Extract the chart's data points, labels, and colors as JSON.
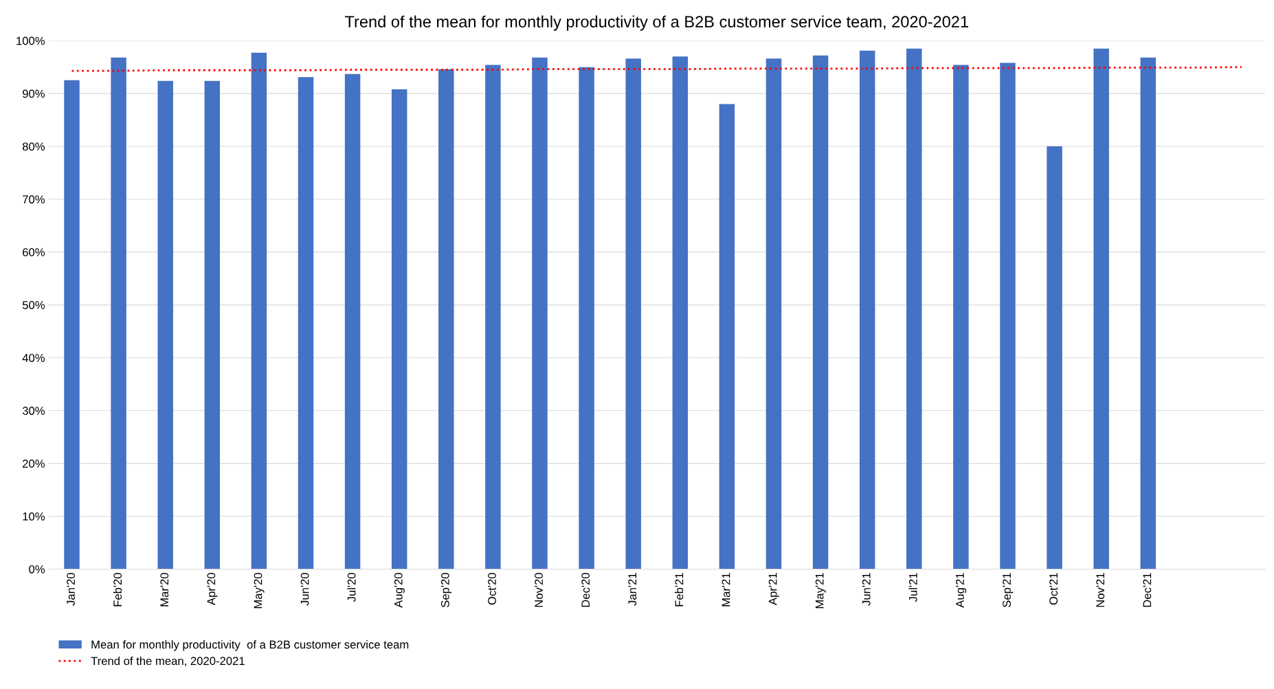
{
  "chart_data": {
    "type": "bar",
    "title": "Trend of the mean for monthly productivity of a B2B customer service team, 2020-2021",
    "categories": [
      "Jan'20",
      "Feb'20",
      "Mar'20",
      "Apr'20",
      "May'20",
      "Jun'20",
      "Jul'20",
      "Aug'20",
      "Sep'20",
      "Oct'20",
      "Nov'20",
      "Dec'20",
      "Jan'21",
      "Feb'21",
      "Mar'21",
      "Apr'21",
      "May'21",
      "Jun'21",
      "Jul'21",
      "Aug'21",
      "Sep'21",
      "Oct'21",
      "Nov'21",
      "Dec'21",
      null,
      null
    ],
    "series": [
      {
        "name": "Mean for monthly productivity  of a B2B customer service team",
        "color": "#4472c4",
        "values": [
          92.5,
          96.8,
          92.4,
          92.4,
          97.7,
          93.1,
          93.7,
          90.8,
          94.6,
          95.4,
          96.8,
          95.0,
          96.6,
          97.0,
          88.0,
          96.6,
          97.2,
          98.1,
          98.5,
          95.4,
          95.8,
          80.0,
          98.5,
          96.8,
          null,
          null
        ]
      },
      {
        "name": "Trend of the mean, 2020-2021",
        "type": "line",
        "color": "#ff0000",
        "line_style": "dotted",
        "values": [
          94.3,
          94.3,
          94.4,
          94.4,
          94.4,
          94.4,
          94.5,
          94.5,
          94.5,
          94.5,
          94.6,
          94.6,
          94.6,
          94.6,
          94.7,
          94.7,
          94.7,
          94.7,
          94.8,
          94.8,
          94.8,
          94.8,
          94.9,
          94.9,
          94.9,
          95.0
        ]
      }
    ],
    "ylim": [
      0,
      100
    ],
    "yticks": [
      {
        "value": 0,
        "label": "0%"
      },
      {
        "value": 10,
        "label": "10%"
      },
      {
        "value": 20,
        "label": "20%"
      },
      {
        "value": 30,
        "label": "30%"
      },
      {
        "value": 40,
        "label": "40%"
      },
      {
        "value": 50,
        "label": "50%"
      },
      {
        "value": 60,
        "label": "60%"
      },
      {
        "value": 70,
        "label": "70%"
      },
      {
        "value": 80,
        "label": "80%"
      },
      {
        "value": 90,
        "label": "90%"
      },
      {
        "value": 100,
        "label": "100%"
      }
    ],
    "grid": "y",
    "legend": "bottom left"
  }
}
